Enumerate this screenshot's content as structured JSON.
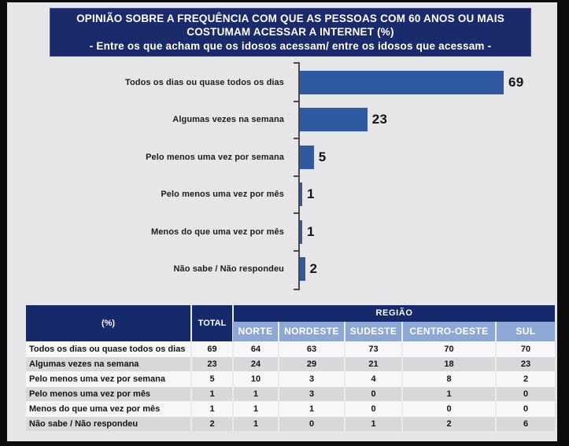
{
  "title_box": {
    "title": "OPINIÃO SOBRE A FREQUÊNCIA COM QUE AS PESSOAS COM 60 ANOS OU MAIS COSTUMAM ACESSAR A INTERNET (%)",
    "subtitle": "- Entre os que acham que os idosos acessam/ entre os idosos que acessam -"
  },
  "chart_data": {
    "type": "bar",
    "orientation": "horizontal",
    "title": "Opinião sobre a frequência com que as pessoas com 60 anos ou mais costumam acessar a internet (%)",
    "categories": [
      "Todos os dias ou quase todos os dias",
      "Algumas vezes na semana",
      "Pelo menos uma vez por semana",
      "Pelo menos uma vez por mês",
      "Menos do que uma vez por mês",
      "Não sabe / Não respondeu"
    ],
    "values": [
      69,
      23,
      5,
      1,
      1,
      2
    ],
    "xlim": [
      0,
      75
    ],
    "value_labels_shown": true,
    "grid": false,
    "legend": false
  },
  "table": {
    "header": {
      "pct": "(%)",
      "total": "TOTAL",
      "region_group": "REGIÃO",
      "regions": [
        "NORTE",
        "NORDESTE",
        "SUDESTE",
        "CENTRO-OESTE",
        "SUL"
      ]
    },
    "rows": [
      {
        "label": "Todos os dias ou quase todos os dias",
        "values": [
          69,
          64,
          63,
          73,
          70,
          70
        ]
      },
      {
        "label": "Algumas vezes na semana",
        "values": [
          23,
          24,
          29,
          21,
          18,
          23
        ]
      },
      {
        "label": "Pelo menos uma vez por semana",
        "values": [
          5,
          10,
          3,
          4,
          8,
          2
        ]
      },
      {
        "label": "Pelo menos uma vez por mês",
        "values": [
          1,
          1,
          3,
          0,
          1,
          0
        ]
      },
      {
        "label": "Menos do que uma vez por mês",
        "values": [
          1,
          1,
          1,
          0,
          0,
          0
        ]
      },
      {
        "label": "Não sabe / Não respondeu",
        "values": [
          2,
          1,
          0,
          1,
          2,
          6
        ]
      }
    ]
  },
  "colors": {
    "title_bg": "#1b2a6b",
    "bar": "#2f59a0",
    "table_header_bg": "#16296b",
    "region_cell_bg": "#8ea8d6",
    "row_odd": "#f7f6f8",
    "row_even": "#d8d7d9",
    "canvas_bg": "#e6e5e7",
    "frame_bg": "#0c0c0c"
  }
}
